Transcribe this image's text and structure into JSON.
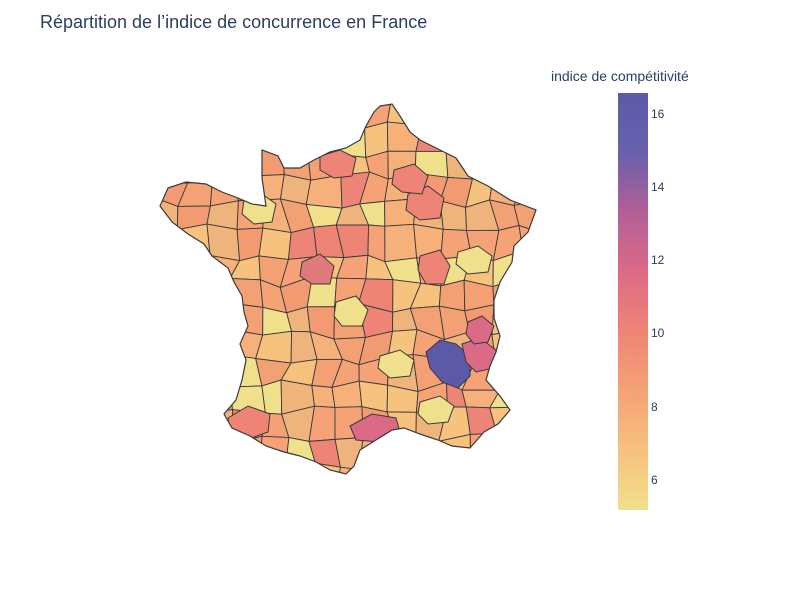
{
  "title": "Répartition de l’indice de concurrence en France",
  "colorbar": {
    "title": "indice de compétitivité",
    "min": 5.2,
    "max": 16.6,
    "ticks": [
      6,
      8,
      10,
      12,
      14,
      16
    ],
    "colorscale": [
      "#f0e08c",
      "#f7c17e",
      "#f4a276",
      "#ee8476",
      "#db6a86",
      "#b35f98",
      "#6961ad",
      "#5c5aa8"
    ]
  },
  "chart_data": {
    "type": "choropleth",
    "variable": "indice de compétitivité",
    "range": [
      5.2,
      16.6
    ]
  }
}
